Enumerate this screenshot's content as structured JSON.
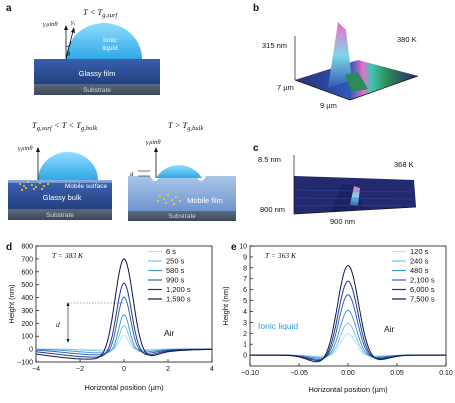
{
  "panels": {
    "a": {
      "label": "a",
      "condition_top": "T < T",
      "condition_top_sub": "g,surf",
      "gamma_label": "γ",
      "gamma_sub": "l",
      "gamma_sin": "γ",
      "gamma_sin_sub": "l",
      "gamma_sin_tail": "sinθ",
      "theta": "θ",
      "drop_label_1": "Ionic",
      "drop_label_2": "liquid",
      "glassy_film": "Glassy film",
      "substrate": "Substrate",
      "cond_left_pre": "T",
      "cond_left_sub1": "g,surf",
      "cond_left_mid": " < T < T",
      "cond_left_sub2": "g,bulk",
      "cond_right_pre": "T > T",
      "cond_right_sub": "g,bulk",
      "mobile_surface": "Mobile surface",
      "glassy_bulk": "Glassy bulk",
      "mobile_film": "Mobile film",
      "d_label": "d",
      "substrate_left": "Substrate",
      "substrate_right": "Substrate"
    },
    "b": {
      "label": "b",
      "temperature": "380 K",
      "z_label": "315 nm",
      "y_label": "7 µm",
      "x_label": "9 µm"
    },
    "c": {
      "label": "c",
      "temperature": "368 K",
      "z_label": "8.5 nm",
      "y_label": "800 nm",
      "x_label": "900 nm"
    },
    "d": {
      "label": "d",
      "temperature": "T = 383 K",
      "ylabel": "Height (nm)",
      "xlabel": "Horizontal position (µm)",
      "annotation_d": "d",
      "annotation_air": "Air"
    },
    "e": {
      "label": "e",
      "temperature": "T = 363 K",
      "ylabel": "Height (nm)",
      "xlabel": "Horizontal position (µm)",
      "annotation_ionic": "Ionic liquid",
      "annotation_air": "Air"
    }
  },
  "chart_data": [
    {
      "panel": "d",
      "type": "line",
      "xlabel": "Horizontal position (µm)",
      "ylabel": "Height (nm)",
      "xlim": [
        -4,
        4
      ],
      "ylim": [
        -100,
        800
      ],
      "xticks": [
        -4,
        -2,
        0,
        2,
        4
      ],
      "yticks": [
        -100,
        0,
        100,
        200,
        300,
        400,
        500,
        600,
        700,
        800
      ],
      "legend_position": "top-right",
      "series": [
        {
          "name": "6 s",
          "color": "#b8e4f6",
          "peak": 115,
          "dip": -5,
          "dip_x": -0.9
        },
        {
          "name": "250 s",
          "color": "#7cc6ea",
          "peak": 195,
          "dip": -15,
          "dip_x": -1.2
        },
        {
          "name": "580 s",
          "color": "#4b98d4",
          "peak": 290,
          "dip": -30,
          "dip_x": -1.6
        },
        {
          "name": "990 s",
          "color": "#2e63b4",
          "peak": 440,
          "dip": -45,
          "dip_x": -2.0
        },
        {
          "name": "1,200 s",
          "color": "#1f3690",
          "peak": 560,
          "dip": -62,
          "dip_x": -2.4
        },
        {
          "name": "1,590 s",
          "color": "#0f1440",
          "peak": 760,
          "dip": -78,
          "dip_x": -2.8
        }
      ]
    },
    {
      "panel": "e",
      "type": "line",
      "xlabel": "Horizontal position (µm)",
      "ylabel": "Height (nm)",
      "xlim": [
        -0.1,
        0.1
      ],
      "ylim": [
        -1,
        10
      ],
      "xticks": [
        -0.1,
        -0.05,
        0.0,
        0.05,
        0.1
      ],
      "xtick_labels": [
        "−0.10",
        "−0.05",
        "0.00",
        "0.05",
        "0.10"
      ],
      "yticks": [
        0,
        1,
        2,
        3,
        4,
        5,
        6,
        7,
        8,
        9,
        10
      ],
      "legend_position": "top-right",
      "series": [
        {
          "name": "120 s",
          "color": "#b8e4f6",
          "peak": 2.0,
          "dip": -0.1
        },
        {
          "name": "240 s",
          "color": "#7cc6ea",
          "peak": 3.0,
          "dip": -0.2
        },
        {
          "name": "480 s",
          "color": "#4b98d4",
          "peak": 4.2,
          "dip": -0.3
        },
        {
          "name": "2,100 s",
          "color": "#2e63b4",
          "peak": 5.7,
          "dip": -0.45
        },
        {
          "name": "6,000 s",
          "color": "#1f3690",
          "peak": 7.0,
          "dip": -0.6
        },
        {
          "name": "7,500 s",
          "color": "#0f1440",
          "peak": 8.5,
          "dip": -0.8
        }
      ]
    }
  ]
}
